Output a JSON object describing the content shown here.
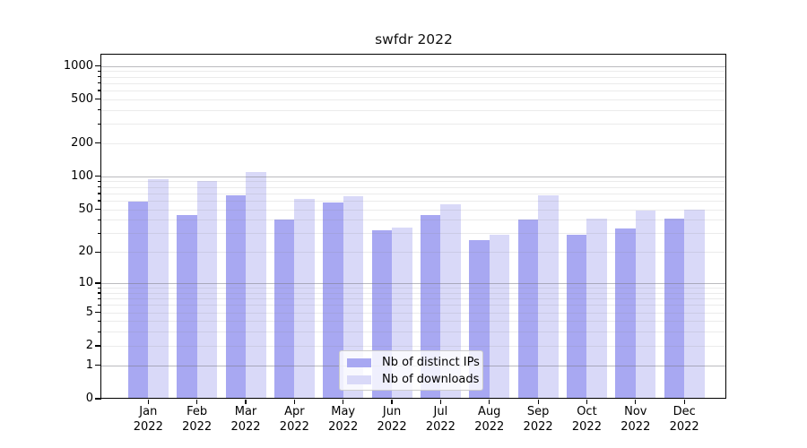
{
  "title": "swfdr 2022",
  "chart_data": {
    "type": "bar",
    "title": "swfdr 2022",
    "categories": [
      "Jan 2022",
      "Feb 2022",
      "Mar 2022",
      "Apr 2022",
      "May 2022",
      "Jun 2022",
      "Jul 2022",
      "Aug 2022",
      "Sep 2022",
      "Oct 2022",
      "Nov 2022",
      "Dec 2022"
    ],
    "series": [
      {
        "name": "Nb of distinct IPs",
        "color": "#a8a8f2",
        "values": [
          59,
          44,
          67,
          40,
          58,
          32,
          44,
          26,
          40,
          29,
          33,
          41
        ]
      },
      {
        "name": "Nb of downloads",
        "color": "#d9d9f8",
        "values": [
          95,
          91,
          110,
          62,
          66,
          34,
          56,
          29,
          67,
          41,
          49,
          50
        ]
      }
    ],
    "xlabel": "",
    "ylabel": "",
    "yscale": "log1p",
    "ylim": [
      0,
      1260
    ],
    "yticks": [
      1000,
      500,
      200,
      100,
      50,
      20,
      10,
      5,
      2,
      1,
      0
    ],
    "major_gridlines": [
      1,
      10,
      100,
      1000
    ],
    "minor_gridlines": [
      2,
      3,
      4,
      5,
      6,
      7,
      8,
      9,
      20,
      30,
      40,
      50,
      60,
      70,
      80,
      90,
      200,
      300,
      400,
      500,
      600,
      700,
      800,
      900
    ],
    "grid": "on",
    "legend_position": "lower center"
  },
  "legend": {
    "items": [
      {
        "label": "Nb of distinct IPs",
        "color": "#a8a8f2"
      },
      {
        "label": "Nb of downloads",
        "color": "#d9d9f8"
      }
    ]
  }
}
